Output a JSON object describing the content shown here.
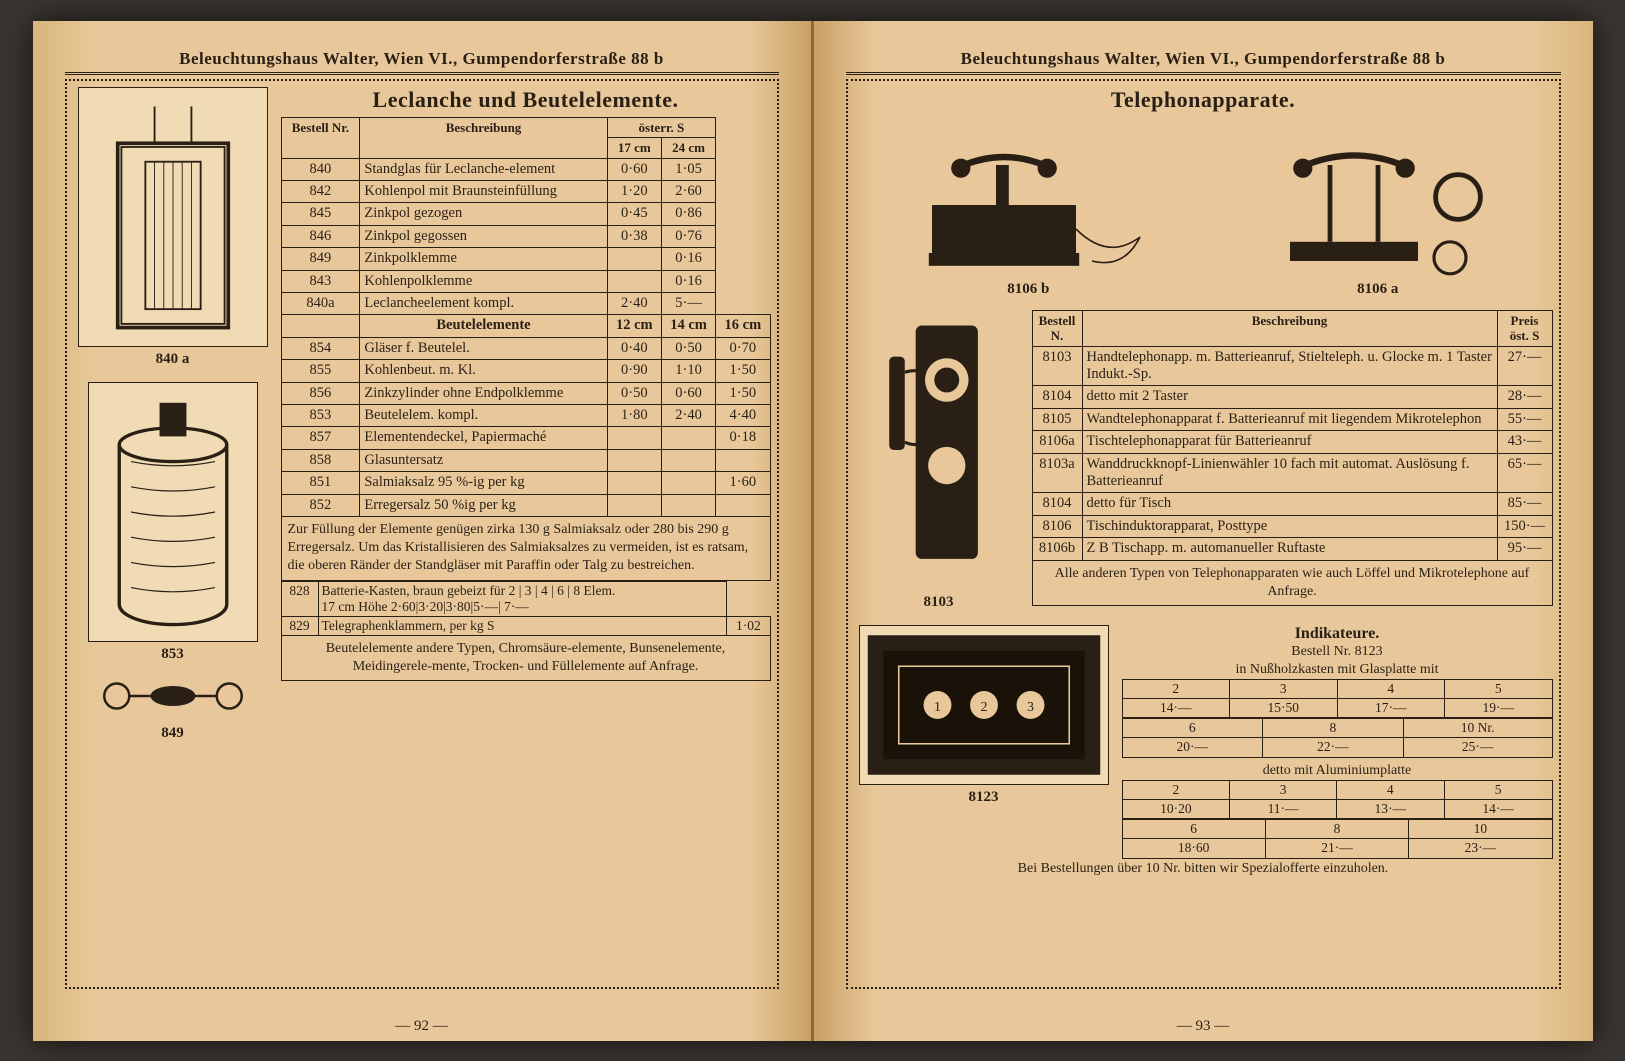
{
  "colors": {
    "paper": "#e8c89a",
    "ink": "#2a1f15",
    "shadow": "#3a3530"
  },
  "header": "Beleuchtungshaus Walter, Wien VI., Gumpendorferstraße 88 b",
  "left": {
    "page_no": "— 92 —",
    "title": "Leclanche und Beutelelemente.",
    "captions": {
      "a": "840 a",
      "b": "853",
      "c": "849"
    },
    "table1_header": {
      "nr": "Bestell\nNr.",
      "desc": "Beschreibung",
      "unit": "österr. S",
      "c1": "17 cm",
      "c2": "24 cm"
    },
    "table1_rows": [
      {
        "nr": "840",
        "desc": "Standglas für Leclanche-element",
        "p1": "0·60",
        "p2": "1·05"
      },
      {
        "nr": "842",
        "desc": "Kohlenpol mit Braunsteinfüllung",
        "p1": "1·20",
        "p2": "2·60"
      },
      {
        "nr": "845",
        "desc": "Zinkpol gezogen",
        "p1": "0·45",
        "p2": "0·86"
      },
      {
        "nr": "846",
        "desc": "Zinkpol gegossen",
        "p1": "0·38",
        "p2": "0·76"
      },
      {
        "nr": "849",
        "desc": "Zinkpolklemme",
        "p1": "",
        "p2": "0·16"
      },
      {
        "nr": "843",
        "desc": "Kohlenpolklemme",
        "p1": "",
        "p2": "0·16"
      },
      {
        "nr": "840a",
        "desc": "Leclancheelement kompl.",
        "p1": "2·40",
        "p2": "5·—"
      }
    ],
    "sub2": {
      "label": "Beutelelemente",
      "c1": "12 cm",
      "c2": "14 cm",
      "c3": "16 cm"
    },
    "table2_rows": [
      {
        "nr": "854",
        "desc": "Gläser f. Beutelel.",
        "p1": "0·40",
        "p2": "0·50",
        "p3": "0·70"
      },
      {
        "nr": "855",
        "desc": "Kohlenbeut. m. Kl.",
        "p1": "0·90",
        "p2": "1·10",
        "p3": "1·50"
      },
      {
        "nr": "856",
        "desc": "Zinkzylinder ohne Endpolklemme",
        "p1": "0·50",
        "p2": "0·60",
        "p3": "1·50"
      },
      {
        "nr": "853",
        "desc": "Beutelelem. kompl.",
        "p1": "1·80",
        "p2": "2·40",
        "p3": "4·40"
      },
      {
        "nr": "857",
        "desc": "Elementendeckel, Papiermaché",
        "p1": "",
        "p2": "",
        "p3": "0·18"
      },
      {
        "nr": "858",
        "desc": "Glasuntersatz",
        "p1": "",
        "p2": "",
        "p3": ""
      },
      {
        "nr": "851",
        "desc": "Salmiaksalz 95 %-ig per kg",
        "p1": "",
        "p2": "",
        "p3": "1·60"
      },
      {
        "nr": "852",
        "desc": "Erregersalz 50 %ig per kg",
        "p1": "",
        "p2": "",
        "p3": ""
      }
    ],
    "fill_note": "Zur Füllung der Elemente genügen zirka 130 g Salmiaksalz oder 280 bis 290 g Erregersalz. Um das Kristallisieren des Salmiaksalzes zu vermeiden, ist es ratsam, die oberen Ränder der Standgläser mit Paraffin oder Talg zu bestreichen.",
    "row828": {
      "nr": "828",
      "desc": "Batterie-Kasten, braun gebeizt für",
      "sizes": "2 | 3 | 4 | 6 | 8 Elem.",
      "line2": "17 cm Höhe 2·60|3·20|3·80|5·—| 7·—"
    },
    "row829": {
      "nr": "829",
      "desc": "Telegraphenklammern, per kg S",
      "price": "1·02"
    },
    "bottom_note": "Beutelelemente andere Typen, Chromsäure-elemente, Bunsenelemente, Meidingerele-mente, Trocken- und Füllelemente auf Anfrage."
  },
  "right": {
    "page_no": "— 93 —",
    "title": "Telephonapparate.",
    "captions": {
      "top_left": "8106 b",
      "top_right": "8106 a",
      "side": "8103",
      "ind": "8123"
    },
    "tbl_header": {
      "nr": "Bestell\nN.",
      "desc": "Beschreibung",
      "price": "Preis öst. S"
    },
    "rows": [
      {
        "nr": "8103",
        "desc": "Handtelephonapp. m. Batterieanruf, Stielteleph. u. Glocke m. 1 Taster Indukt.-Sp.",
        "p": "27·—"
      },
      {
        "nr": "8104",
        "desc": "detto mit 2 Taster",
        "p": "28·—"
      },
      {
        "nr": "8105",
        "desc": "Wandtelephonapparat f. Batterieanruf mit liegendem Mikrotelephon",
        "p": "55·—"
      },
      {
        "nr": "8106a",
        "desc": "Tischtelephonapparat für Batterieanruf",
        "p": "43·—"
      },
      {
        "nr": "8103a",
        "desc": "Wanddruckknopf-Linienwähler 10 fach mit automat. Auslösung f. Batterieanruf",
        "p": "65·—"
      },
      {
        "nr": "8104",
        "desc": "detto für Tisch",
        "p": "85·—"
      },
      {
        "nr": "8106",
        "desc": "Tischinduktorapparat, Posttype",
        "p": "150·—"
      },
      {
        "nr": "8106b",
        "desc": "Z B Tischapp. m. automanueller Ruftaste",
        "p": "95·—"
      }
    ],
    "tel_note": "Alle anderen Typen von Telephonapparaten wie auch Löffel und Mikrotelephone auf Anfrage.",
    "indik": {
      "title": "Indikateure.",
      "sub1": "Bestell Nr. 8123",
      "sub2": "in Nußholzkasten mit Glasplatte mit",
      "row_a_h": [
        "2",
        "3",
        "4",
        "5"
      ],
      "row_a_v": [
        "14·—",
        "15·50",
        "17·—",
        "19·—"
      ],
      "row_b_h": [
        "6",
        "8",
        "10 Nr."
      ],
      "row_b_v": [
        "20·—",
        "22·—",
        "25·—"
      ],
      "alu": "detto mit Aluminiumplatte",
      "row_c_h": [
        "2",
        "3",
        "4",
        "5"
      ],
      "row_c_v": [
        "10·20",
        "11·—",
        "13·—",
        "14·—"
      ],
      "row_d_h": [
        "6",
        "8",
        "10"
      ],
      "row_d_v": [
        "18·60",
        "21·—",
        "23·—"
      ]
    },
    "bottom": "Bei Bestellungen über 10 Nr. bitten wir Spezialofferte einzuholen."
  }
}
